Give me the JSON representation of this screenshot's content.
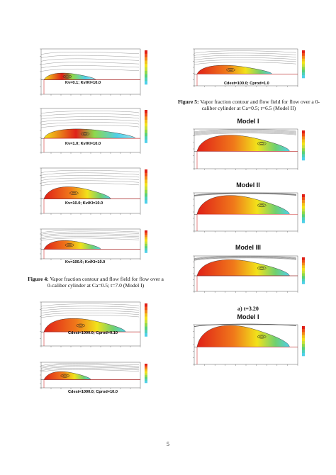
{
  "figure4": {
    "panel_labels": [
      "Kv=0.1; Kv/Kl=10.0",
      "Kv=1.0; Kv/Kl=10.0",
      "Kv=10.0; Kv/Kl=10.0",
      "Kv=100.0; Kv/Kl=10.0"
    ],
    "caption_label": "Figure 4:",
    "caption_text": " Vapor fraction contour and flow field for flow over a 0-caliber cylinder at Ca=0.5; t=7.0 (Model I)"
  },
  "bottom_left_panels": {
    "panel_labels": [
      "Cdest=1000.0; Cprod=0.10",
      "Cdest=1000.0; Cprod=10.0"
    ]
  },
  "figure5": {
    "panel_labels": [
      "Cdest=100.0; Cprod=1.0"
    ],
    "caption_label": "Figure 5:",
    "caption_text": " Vapor fraction contour and flow field for flow over a 0-caliber cylinder at Ca=0.5; t=6.5 (Model II)"
  },
  "right_models": {
    "titles": [
      "Model I",
      "Model II",
      "Model III",
      "Model I"
    ],
    "subcaption": "a) t=3.20"
  },
  "page_number": "5",
  "colors": {
    "vapor_high": "#e02018",
    "vapor_mid": "#f2e21a",
    "vapor_low": "#4fd0e8",
    "wall": "#d03030"
  }
}
